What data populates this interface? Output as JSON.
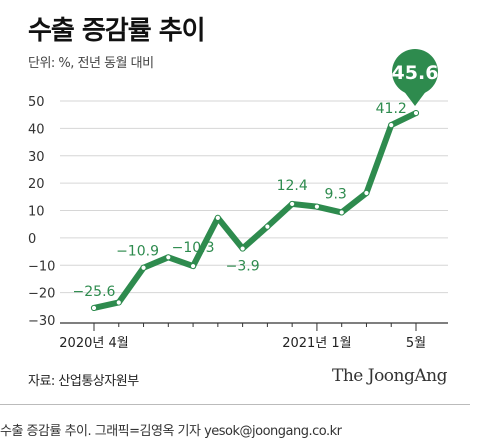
{
  "title": "수출 증감률 추이",
  "unit_label": "단위: %, 전년 동월 대비",
  "source": "자료: 산업통상자원부",
  "brand": "The JoongAng",
  "caption": "수출 증감률 추이. 그래픽=김영옥 기자 yesok@joongang.co.kr",
  "colors": {
    "line": "#2e8b4e",
    "grid": "#d6d6d6",
    "axis": "#333333"
  },
  "chart_data": {
    "type": "line",
    "title": "수출 증감률 추이",
    "ylabel": "단위: %, 전년 동월 대비",
    "ylim": [
      -30,
      50
    ],
    "yticks": [
      50,
      40,
      30,
      20,
      10,
      0,
      -10,
      -20,
      -30
    ],
    "grid": true,
    "x": [
      "2020-04",
      "2020-05",
      "2020-06",
      "2020-07",
      "2020-08",
      "2020-09",
      "2020-10",
      "2020-11",
      "2020-12",
      "2021-01",
      "2021-02",
      "2021-03",
      "2021-04",
      "2021-05"
    ],
    "values": [
      -25.6,
      -23.6,
      -10.9,
      -7.1,
      -10.3,
      7.3,
      -3.9,
      4.1,
      12.4,
      11.4,
      9.3,
      16.4,
      41.2,
      45.6
    ],
    "xtick_labels": [
      {
        "index": 0,
        "label": "2020년 4월"
      },
      {
        "index": 9,
        "label": "2021년 1월"
      },
      {
        "index": 13,
        "label": "5월"
      }
    ],
    "data_labels": [
      {
        "index": 0,
        "label": "−25.6"
      },
      {
        "index": 2,
        "label": "−10.9"
      },
      {
        "index": 4,
        "label": "−10.3"
      },
      {
        "index": 6,
        "label": "−3.9"
      },
      {
        "index": 8,
        "label": "12.4"
      },
      {
        "index": 10,
        "label": "9.3"
      },
      {
        "index": 12,
        "label": "41.2"
      }
    ],
    "highlight": {
      "index": 13,
      "label": "45.6"
    }
  }
}
